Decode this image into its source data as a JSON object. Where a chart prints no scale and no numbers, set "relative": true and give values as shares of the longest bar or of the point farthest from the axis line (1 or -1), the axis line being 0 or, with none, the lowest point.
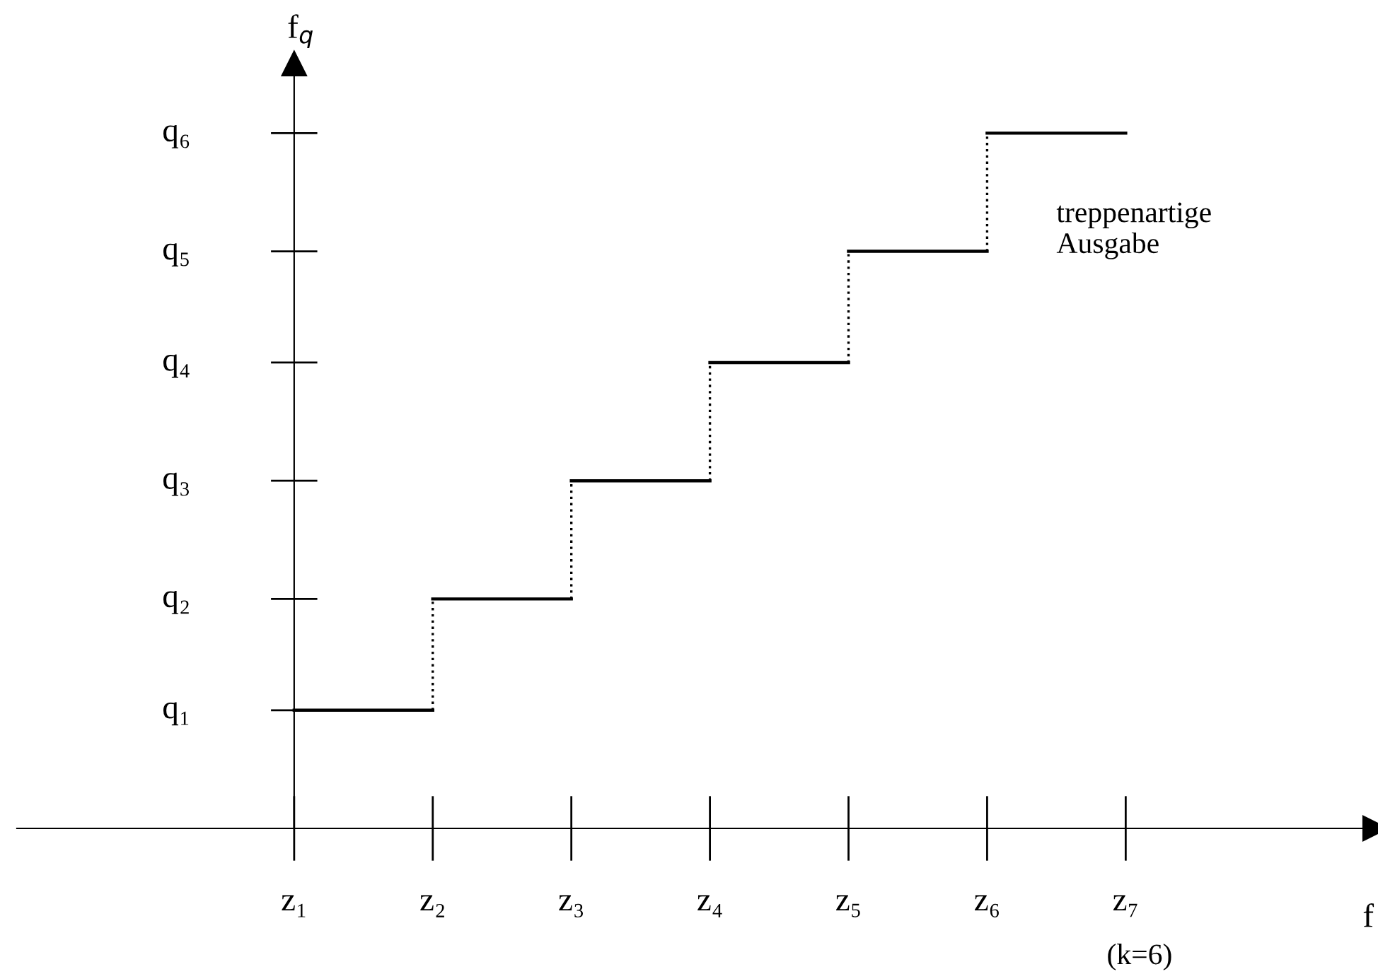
{
  "chart_data": {
    "type": "step",
    "relative": true,
    "ylabel": "f$_{q}$",
    "categories": [
      "z₁",
      "z₂",
      "z₃",
      "z₄",
      "z₅",
      "z₆",
      "z₇"
    ],
    "values": [
      0.17,
      0.33,
      0.5,
      0.67,
      0.83,
      1,
      1
    ],
    "color": "#000000",
    "line_style": "solid",
    "annotations": [
      "q₁",
      "q₂",
      "q₃",
      "q₄",
      "q₅",
      "q₆",
      "treppenartige\nAusgabe",
      "(k=6)",
      "f"
    ]
  }
}
